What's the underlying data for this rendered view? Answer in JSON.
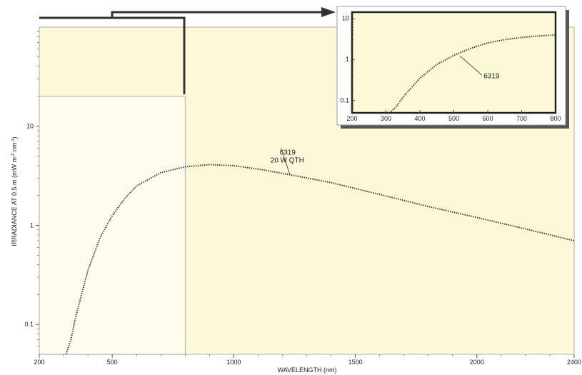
{
  "chart_data": [
    {
      "type": "line",
      "xlabel": "WAVELENGTH (nm)",
      "ylabel_parts": [
        "IRRADIANCE AT 0.5 m (mW m",
        "-2",
        " nm",
        "-1",
        ")"
      ],
      "x_scale": "linear",
      "y_scale": "log",
      "xlim": [
        200,
        2400
      ],
      "ylim": [
        0.05,
        100
      ],
      "x_ticks": [
        200,
        500,
        1000,
        1500,
        2000,
        2400
      ],
      "y_ticks": [
        0.1,
        1,
        10
      ],
      "y_tick_labels": [
        "0.1",
        "1",
        "10"
      ],
      "highlight_region": [
        200,
        800
      ],
      "annotation": {
        "lines": [
          "6319",
          "20 W QTH"
        ],
        "x": 1230,
        "y": 3.3
      },
      "series": [
        {
          "name": "6319",
          "x": [
            310,
            330,
            350,
            400,
            450,
            500,
            550,
            600,
            700,
            800,
            900,
            1000,
            1100,
            1200,
            1400,
            1600,
            1800,
            2000,
            2200,
            2400
          ],
          "y": [
            0.05,
            0.07,
            0.12,
            0.35,
            0.75,
            1.25,
            1.85,
            2.5,
            3.4,
            3.9,
            4.1,
            4.0,
            3.7,
            3.35,
            2.7,
            2.05,
            1.55,
            1.2,
            0.92,
            0.7
          ]
        }
      ]
    },
    {
      "type": "line",
      "x_scale": "linear",
      "y_scale": "log",
      "xlim": [
        200,
        800
      ],
      "ylim": [
        0.05,
        14
      ],
      "x_ticks": [
        200,
        300,
        400,
        500,
        600,
        700,
        800
      ],
      "y_ticks": [
        0.1,
        1,
        10
      ],
      "y_tick_labels": [
        "0.1",
        "1",
        "10"
      ],
      "annotation": {
        "text": "6319",
        "x": 510,
        "y": 1.3
      },
      "series": [
        {
          "name": "6319",
          "x": [
            310,
            330,
            350,
            400,
            450,
            500,
            550,
            600,
            650,
            700,
            750,
            800
          ],
          "y": [
            0.05,
            0.07,
            0.12,
            0.35,
            0.75,
            1.25,
            1.85,
            2.5,
            3.0,
            3.4,
            3.7,
            3.9
          ]
        }
      ]
    }
  ]
}
